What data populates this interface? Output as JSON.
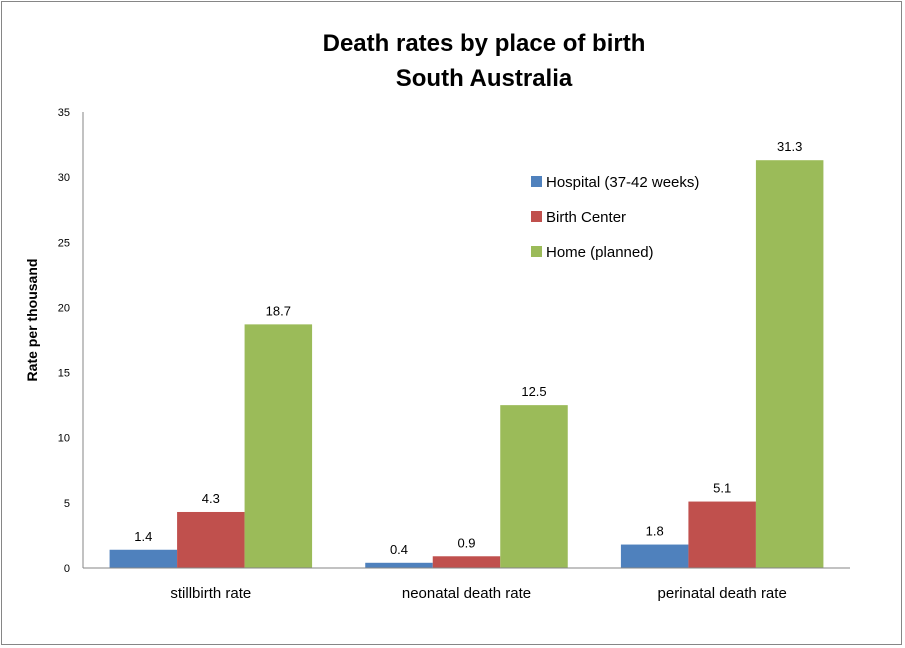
{
  "chart_data": {
    "type": "bar",
    "title": [
      "Death rates by place of birth",
      "South Australia"
    ],
    "xlabel": "",
    "ylabel": "Rate per thousand",
    "ylim": [
      0,
      35
    ],
    "yticks": [
      0,
      5,
      10,
      15,
      20,
      25,
      30,
      35
    ],
    "categories": [
      "stillbirth rate",
      "neonatal death rate",
      "perinatal death rate"
    ],
    "series": [
      {
        "name": "Hospital (37-42 weeks)",
        "color": "#4F81BD",
        "values": [
          1.4,
          0.4,
          1.8
        ]
      },
      {
        "name": "Birth Center",
        "color": "#C0504D",
        "values": [
          4.3,
          0.9,
          5.1
        ]
      },
      {
        "name": "Home (planned)",
        "color": "#9BBB59",
        "values": [
          18.7,
          12.5,
          31.3
        ]
      }
    ],
    "data_labels": true,
    "grid": false,
    "legend": "top-right"
  }
}
